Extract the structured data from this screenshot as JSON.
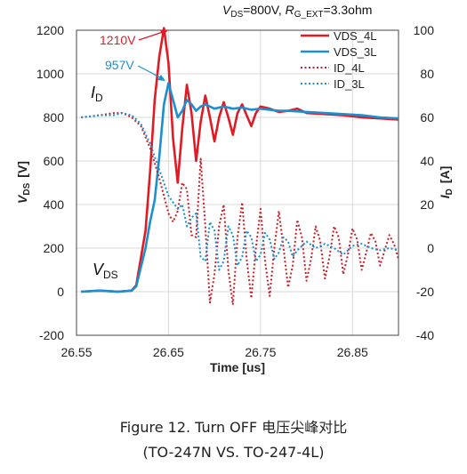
{
  "conditions": {
    "vds_sym": "V",
    "vds_sub": "DS",
    "vds_val": "=800V, ",
    "rg_sym": "R",
    "rg_sub": "G_EXT",
    "rg_val": "=3.3ohm"
  },
  "caption": {
    "line1": "Figure 12. Turn OFF 电压尖峰对比",
    "line2": "(TO-247N VS. TO-247-4L)"
  },
  "annotations": {
    "peak_4l": "1210V",
    "peak_3l": "957V",
    "id_label_sym": "I",
    "id_label_sub": "D",
    "vds_label_sym": "V",
    "vds_label_sub": "DS"
  },
  "chart_data": {
    "type": "line",
    "xlabel": "Time [us]",
    "ylabel_left": {
      "sym": "V",
      "sub": "DS",
      "unit": "[V]"
    },
    "ylabel_right": {
      "sym": "I",
      "sub": "D",
      "unit": "[A]"
    },
    "xlim": [
      26.55,
      26.9
    ],
    "xticks": [
      26.55,
      26.65,
      26.75,
      26.85
    ],
    "xtick_labels": [
      "26.55",
      "26.65",
      "26.75",
      "26.85"
    ],
    "ylim_left": [
      -200,
      1200
    ],
    "yticks_left": [
      -200,
      0,
      200,
      400,
      600,
      800,
      1000,
      1200
    ],
    "ylim_right": [
      -40,
      100
    ],
    "yticks_right": [
      -40,
      -20,
      0,
      20,
      40,
      60,
      80,
      100
    ],
    "grid": true,
    "legend": {
      "position": "top-right",
      "entries": [
        {
          "name": "VDS_4L",
          "style": "solid",
          "color": "#e01b24"
        },
        {
          "name": "VDS_3L",
          "style": "solid",
          "color": "#1b8fcf"
        },
        {
          "name": "ID_4L",
          "style": "dotted",
          "color": "#c8202a"
        },
        {
          "name": "ID_3L",
          "style": "dotted",
          "color": "#1b8fcf"
        }
      ]
    },
    "series": [
      {
        "name": "VDS_4L",
        "axis": "left",
        "color": "#e01b24",
        "style": "solid",
        "x": [
          26.555,
          26.575,
          26.595,
          26.61,
          26.615,
          26.625,
          26.63,
          26.635,
          26.64,
          26.645,
          26.65,
          26.655,
          26.66,
          26.665,
          26.67,
          26.675,
          26.68,
          26.685,
          26.69,
          26.695,
          26.7,
          26.705,
          26.71,
          26.715,
          26.72,
          26.725,
          26.73,
          26.735,
          26.74,
          26.745,
          26.75,
          26.76,
          26.77,
          26.78,
          26.79,
          26.8,
          26.82,
          26.84,
          26.86,
          26.88,
          26.9
        ],
        "y": [
          0,
          5,
          0,
          5,
          30,
          280,
          550,
          880,
          1080,
          1210,
          1050,
          700,
          500,
          750,
          950,
          820,
          600,
          780,
          900,
          800,
          690,
          800,
          870,
          800,
          720,
          820,
          860,
          810,
          760,
          820,
          850,
          840,
          825,
          830,
          840,
          820,
          815,
          810,
          800,
          795,
          790
        ]
      },
      {
        "name": "VDS_3L",
        "axis": "left",
        "color": "#1b8fcf",
        "style": "solid",
        "x": [
          26.555,
          26.575,
          26.595,
          26.61,
          26.615,
          26.625,
          26.63,
          26.635,
          26.64,
          26.645,
          26.65,
          26.655,
          26.66,
          26.665,
          26.67,
          26.675,
          26.68,
          26.685,
          26.69,
          26.7,
          26.71,
          26.72,
          26.73,
          26.74,
          26.75,
          26.76,
          26.77,
          26.78,
          26.8,
          26.82,
          26.84,
          26.86,
          26.88,
          26.9
        ],
        "y": [
          0,
          5,
          0,
          5,
          25,
          200,
          320,
          420,
          620,
          860,
          957,
          880,
          800,
          830,
          880,
          860,
          830,
          850,
          860,
          840,
          850,
          840,
          845,
          835,
          840,
          835,
          830,
          830,
          825,
          820,
          815,
          810,
          800,
          795
        ]
      },
      {
        "name": "ID_4L",
        "axis": "right",
        "color": "#c8202a",
        "style": "dotted",
        "x": [
          26.555,
          26.575,
          26.59,
          26.6,
          26.61,
          26.62,
          26.63,
          26.64,
          26.645,
          26.65,
          26.655,
          26.66,
          26.665,
          26.67,
          26.675,
          26.68,
          26.685,
          26.69,
          26.695,
          26.7,
          26.705,
          26.71,
          26.715,
          26.72,
          26.725,
          26.73,
          26.735,
          26.74,
          26.745,
          26.75,
          26.755,
          26.76,
          26.765,
          26.77,
          26.775,
          26.78,
          26.785,
          26.79,
          26.795,
          26.8,
          26.805,
          26.81,
          26.815,
          26.82,
          26.825,
          26.83,
          26.835,
          26.84,
          26.845,
          26.85,
          26.855,
          26.86,
          26.865,
          26.87,
          26.875,
          26.88,
          26.885,
          26.89,
          26.895,
          26.9
        ],
        "y": [
          60,
          61,
          62,
          62,
          60,
          56,
          46,
          32,
          24,
          16,
          12,
          17,
          30,
          27,
          6,
          5,
          41,
          10,
          -25,
          -12,
          10,
          20,
          -10,
          -26,
          5,
          21,
          -5,
          -23,
          0,
          18,
          -6,
          -22,
          0,
          17,
          0,
          -18,
          -8,
          13,
          5,
          -15,
          -5,
          10,
          3,
          -14,
          -4,
          10,
          5,
          -12,
          -3,
          9,
          4,
          -10,
          -2,
          7,
          3,
          -8,
          -1,
          6,
          2,
          -5
        ]
      },
      {
        "name": "ID_3L",
        "axis": "right",
        "color": "#1b8fcf",
        "style": "dotted",
        "x": [
          26.555,
          26.575,
          26.59,
          26.6,
          26.61,
          26.62,
          26.63,
          26.64,
          26.65,
          26.66,
          26.665,
          26.67,
          26.675,
          26.68,
          26.685,
          26.69,
          26.695,
          26.7,
          26.705,
          26.71,
          26.715,
          26.72,
          26.725,
          26.73,
          26.735,
          26.74,
          26.745,
          26.75,
          26.755,
          26.76,
          26.765,
          26.77,
          26.775,
          26.78,
          26.785,
          26.79,
          26.8,
          26.81,
          26.82,
          26.83,
          26.84,
          26.85,
          26.86,
          26.87,
          26.88,
          26.89,
          26.9
        ],
        "y": [
          60,
          61,
          61,
          62,
          61,
          57,
          48,
          36,
          24,
          18,
          20,
          10,
          14,
          16,
          -4,
          -6,
          12,
          8,
          -10,
          -6,
          10,
          6,
          -8,
          -4,
          8,
          5,
          -6,
          -3,
          7,
          4,
          -5,
          -2,
          5,
          3,
          -4,
          -1,
          3,
          0,
          2,
          0,
          -3,
          1,
          2,
          0,
          -1,
          0,
          -1
        ]
      }
    ]
  }
}
